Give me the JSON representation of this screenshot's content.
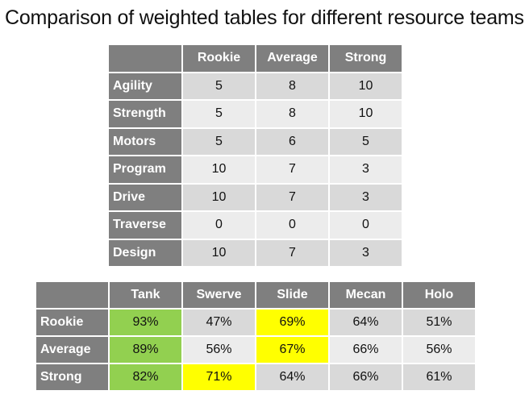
{
  "title": "Comparison of weighted tables for different resource teams",
  "weights_table": {
    "columns": [
      "Rookie",
      "Average",
      "Strong"
    ],
    "rows": [
      {
        "label": "Agility",
        "values": [
          "5",
          "8",
          "10"
        ]
      },
      {
        "label": "Strength",
        "values": [
          "5",
          "8",
          "10"
        ]
      },
      {
        "label": "Motors",
        "values": [
          "5",
          "6",
          "5"
        ]
      },
      {
        "label": "Program",
        "values": [
          "10",
          "7",
          "3"
        ]
      },
      {
        "label": "Drive",
        "values": [
          "10",
          "7",
          "3"
        ]
      },
      {
        "label": "Traverse",
        "values": [
          "0",
          "0",
          "0"
        ]
      },
      {
        "label": "Design",
        "values": [
          "10",
          "7",
          "3"
        ]
      }
    ]
  },
  "results_table": {
    "columns": [
      "Tank",
      "Swerve",
      "Slide",
      "Mecan",
      "Holo"
    ],
    "rows": [
      {
        "label": "Rookie",
        "values": [
          "93%",
          "47%",
          "69%",
          "64%",
          "51%"
        ],
        "highlights": [
          "green",
          "",
          "yellow",
          "",
          ""
        ]
      },
      {
        "label": "Average",
        "values": [
          "89%",
          "56%",
          "67%",
          "66%",
          "56%"
        ],
        "highlights": [
          "green",
          "",
          "yellow",
          "",
          ""
        ]
      },
      {
        "label": "Strong",
        "values": [
          "82%",
          "71%",
          "64%",
          "66%",
          "61%"
        ],
        "highlights": [
          "green",
          "yellow",
          "",
          "",
          ""
        ]
      }
    ],
    "highlight_colors": {
      "green": "#92d050",
      "yellow": "#ffff00"
    }
  },
  "colors": {
    "header_bg": "#7f7f7f",
    "row_odd": "#d9d9d9",
    "row_even": "#ececec"
  }
}
